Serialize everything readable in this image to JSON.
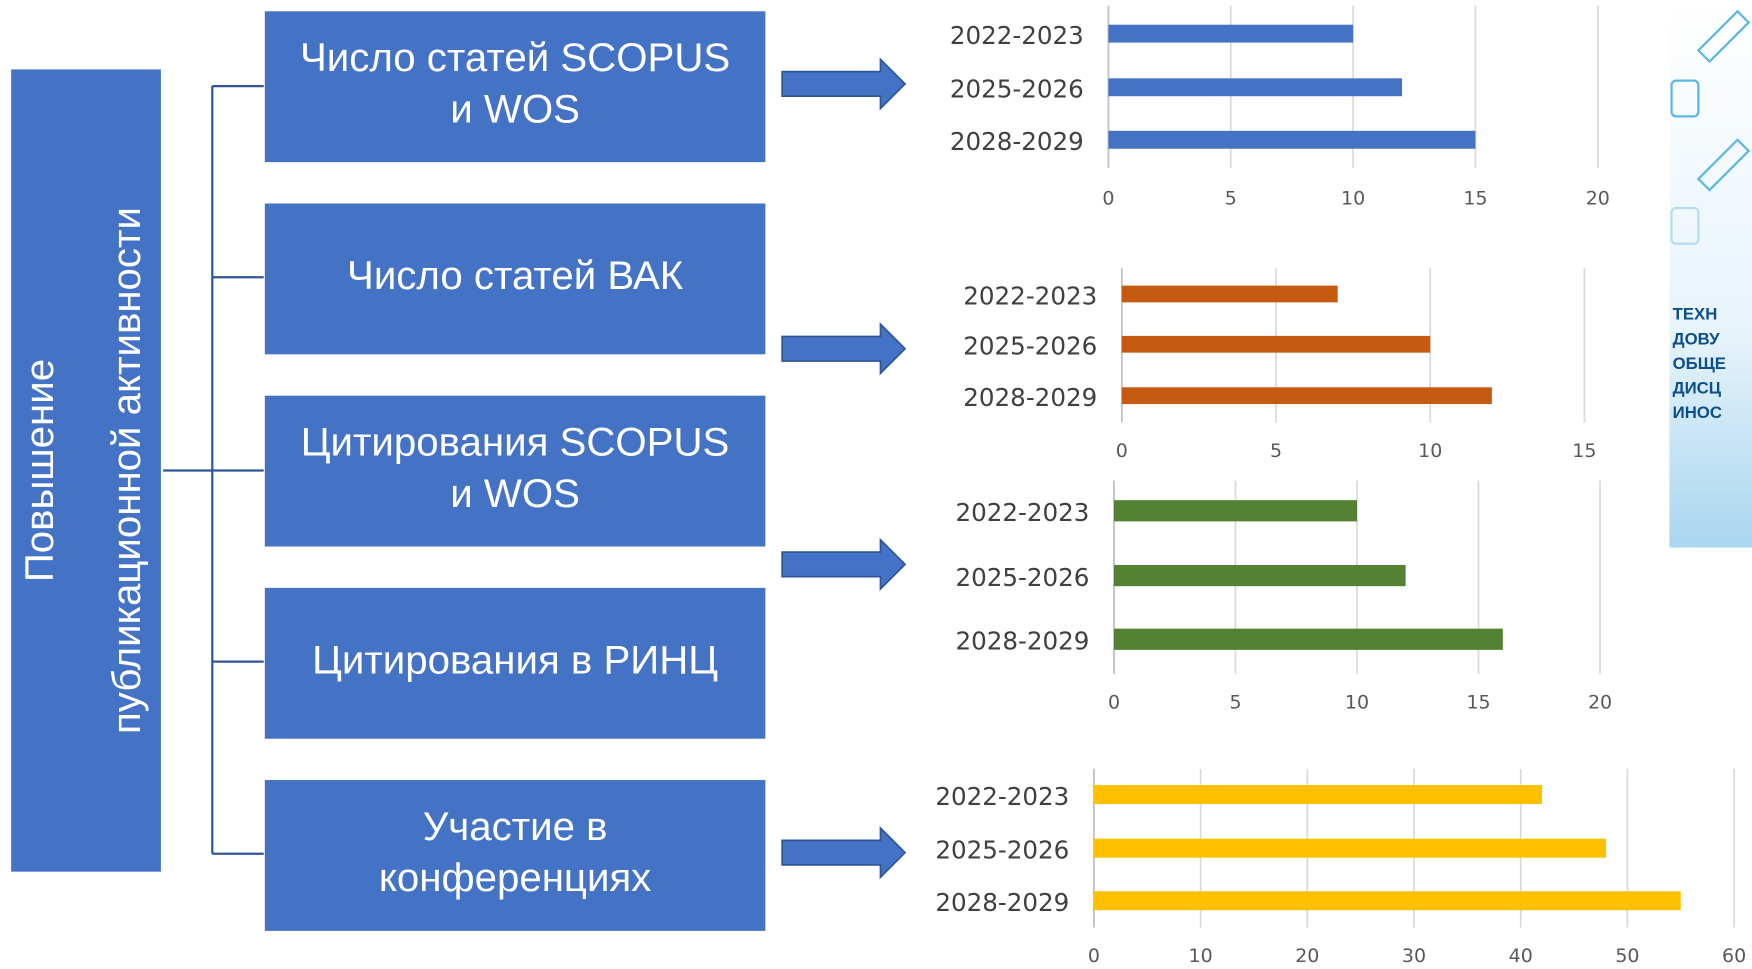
{
  "diagram": {
    "root": {
      "lines": [
        "Повышение",
        "публикационной активности"
      ]
    },
    "boxes": [
      {
        "lines": [
          "Число статей  SCOPUS",
          "и WOS"
        ]
      },
      {
        "lines": [
          "Число статей ВАК"
        ]
      },
      {
        "lines": [
          "Цитирования SCOPUS",
          "и WOS"
        ]
      },
      {
        "lines": [
          "Цитирования в РИНЦ"
        ]
      },
      {
        "lines": [
          "Участие в",
          "конференциях"
        ]
      }
    ]
  },
  "side_panel": {
    "lines": [
      "ТЕХН",
      "ДОВУ",
      "ОБЩЕ",
      "ДИСЦ",
      "ИНОС"
    ]
  },
  "chart_data": [
    {
      "type": "bar",
      "orientation": "horizontal",
      "categories": [
        "2022-2023",
        "2025-2026",
        "2028-2029"
      ],
      "values": [
        10,
        12,
        15
      ],
      "color": "#4472c4",
      "xlim": [
        0,
        20
      ],
      "xticks": [
        0,
        5,
        10,
        15,
        20
      ],
      "grid": true
    },
    {
      "type": "bar",
      "orientation": "horizontal",
      "categories": [
        "2022-2023",
        "2025-2026",
        "2028-2029"
      ],
      "values": [
        7,
        10,
        12
      ],
      "color": "#c55a11",
      "xlim": [
        0,
        15
      ],
      "xticks": [
        0,
        5,
        10,
        15
      ],
      "grid": true
    },
    {
      "type": "bar",
      "orientation": "horizontal",
      "categories": [
        "2022-2023",
        "2025-2026",
        "2028-2029"
      ],
      "values": [
        10,
        12,
        16
      ],
      "color": "#548235",
      "xlim": [
        0,
        20
      ],
      "xticks": [
        0,
        5,
        10,
        15,
        20
      ],
      "grid": true
    },
    {
      "type": "bar",
      "orientation": "horizontal",
      "categories": [
        "2022-2023",
        "2025-2026",
        "2028-2029"
      ],
      "values": [
        42,
        48,
        55
      ],
      "color": "#ffc000",
      "xlim": [
        0,
        60
      ],
      "xticks": [
        0,
        10,
        20,
        30,
        40,
        50,
        60
      ],
      "grid": true
    }
  ]
}
